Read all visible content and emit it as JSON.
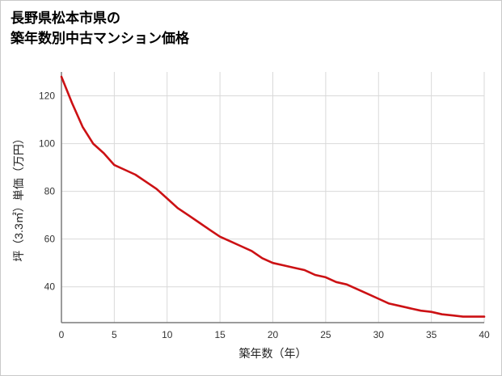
{
  "title": {
    "line1": "長野県松本市県の",
    "line2": "築年数別中古マンション価格"
  },
  "chart_data": {
    "type": "line",
    "title": "長野県松本市県の築年数別中古マンション価格",
    "xlabel": "築年数（年）",
    "ylabel": "坪（3.3㎡）単価（万円）",
    "x": [
      0,
      1,
      2,
      3,
      4,
      5,
      6,
      7,
      8,
      9,
      10,
      11,
      12,
      13,
      14,
      15,
      16,
      17,
      18,
      19,
      20,
      21,
      22,
      23,
      24,
      25,
      26,
      27,
      28,
      29,
      30,
      31,
      32,
      33,
      34,
      35,
      36,
      37,
      38,
      39,
      40
    ],
    "values": [
      128,
      117,
      107,
      100,
      96,
      91,
      89,
      87,
      84,
      81,
      77,
      73,
      70,
      67,
      64,
      61,
      59,
      57,
      55,
      52,
      50,
      49,
      48,
      47,
      45,
      44,
      42,
      41,
      39,
      37,
      35,
      33,
      32,
      31,
      30,
      29.5,
      28.5,
      28,
      27.5,
      27.5,
      27.5
    ],
    "xlim": [
      0,
      40
    ],
    "ylim": [
      25,
      130
    ],
    "x_ticks": [
      0,
      5,
      10,
      15,
      20,
      25,
      30,
      35,
      40
    ],
    "y_ticks": [
      40,
      60,
      80,
      100,
      120
    ],
    "grid": true,
    "legend": "none",
    "line_color": "#cc1114",
    "grid_color": "#d9d9d9",
    "axis_color": "#7a7a7a"
  }
}
